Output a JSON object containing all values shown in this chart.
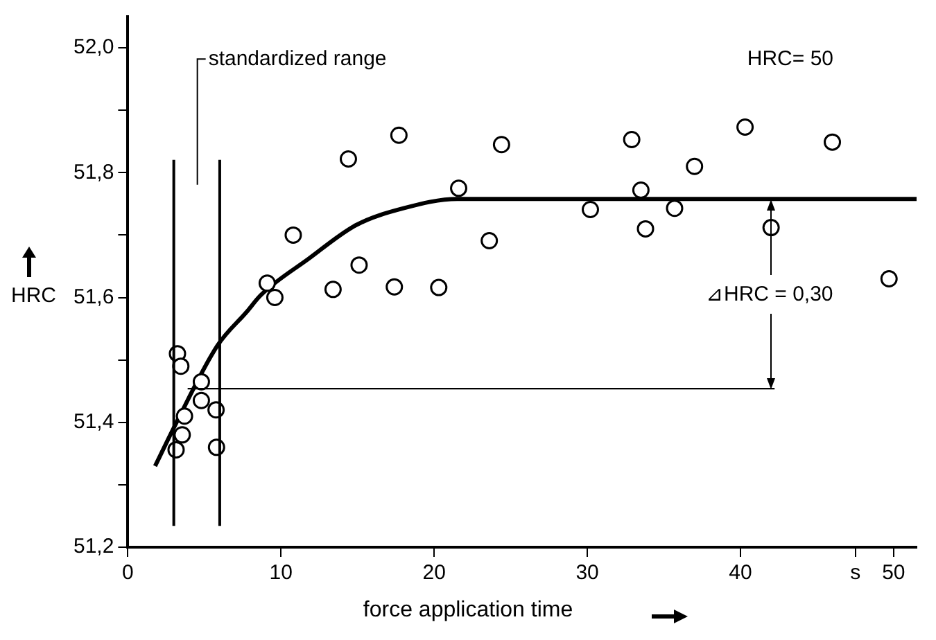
{
  "chart_data": {
    "type": "scatter",
    "xlabel": "force application time",
    "ylabel": "HRC",
    "xlim": [
      0,
      51.5
    ],
    "ylim": [
      51.2,
      52.05
    ],
    "xticks": [
      0,
      10,
      20,
      30,
      40,
      {
        "value": 47.5,
        "label": "s"
      },
      50
    ],
    "yticks": [
      {
        "value": 51.2,
        "label": "51,2"
      },
      {
        "value": 51.3,
        "label": null
      },
      {
        "value": 51.4,
        "label": "51,4"
      },
      {
        "value": 51.5,
        "label": null
      },
      {
        "value": 51.6,
        "label": "51,6"
      },
      {
        "value": 51.7,
        "label": null
      },
      {
        "value": 51.8,
        "label": "51,8"
      },
      {
        "value": 51.9,
        "label": null
      },
      {
        "value": 52.0,
        "label": "52,0"
      }
    ],
    "grid": false,
    "legend": false,
    "ref_lines": [
      {
        "axis": "x",
        "value": 3,
        "label": "standardized range"
      },
      {
        "axis": "x",
        "value": 6
      },
      {
        "axis": "y",
        "value": 51.454
      }
    ],
    "annotations": [
      "HRC= 50",
      "⊿HRC = 0,30"
    ],
    "series": [
      {
        "type": "scatter",
        "marker": "circle",
        "color": "#000000",
        "x": [
          3.24,
          3.46,
          4.8,
          4.8,
          5.76,
          3.7,
          3.55,
          3.15,
          5.79,
          9.1,
          9.6,
          10.8,
          13.4,
          14.4,
          15.1,
          17.4,
          17.7,
          20.3,
          21.6,
          23.6,
          24.4,
          30.2,
          32.9,
          33.5,
          33.8,
          35.7,
          37.0,
          40.3,
          42.0,
          46.0,
          49.7
        ],
        "values": [
          51.51,
          51.49,
          51.465,
          51.435,
          51.42,
          51.41,
          51.38,
          51.356,
          51.36,
          51.623,
          51.6,
          51.7,
          51.613,
          51.822,
          51.652,
          51.617,
          51.86,
          51.616,
          51.775,
          51.691,
          51.845,
          51.741,
          51.853,
          51.772,
          51.71,
          51.743,
          51.81,
          51.873,
          51.712,
          51.849,
          51.63
        ]
      },
      {
        "type": "line",
        "marker": "none",
        "line_style": "solid",
        "color": "#000000",
        "x": [
          1.78,
          3.1,
          5.85,
          7.76,
          8.69,
          11.8,
          14.9,
          18.0,
          21.5,
          51.5
        ],
        "values": [
          51.33,
          51.396,
          51.523,
          51.577,
          51.604,
          51.662,
          51.716,
          51.743,
          51.758,
          51.758
        ]
      }
    ]
  }
}
